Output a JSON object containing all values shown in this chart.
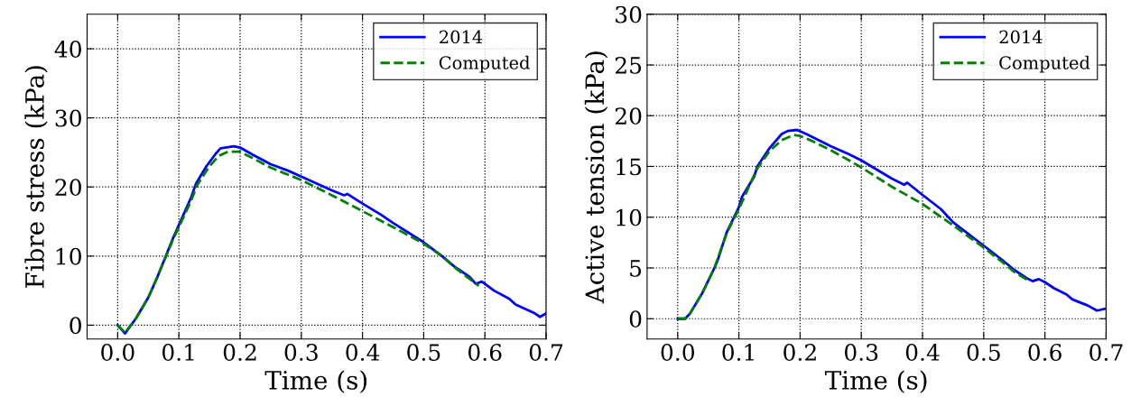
{
  "chart_data": [
    {
      "type": "line",
      "xlabel": "Time (s)",
      "ylabel": "Fibre stress (kPa)",
      "xlim": [
        -0.05,
        0.7
      ],
      "xticks": [
        {
          "value": 0,
          "label": "0.0"
        },
        0.1,
        0.2,
        0.3,
        0.4,
        0.5,
        0.6,
        0.7
      ],
      "ylim": [
        -2,
        45
      ],
      "yticks": [
        0,
        10,
        20,
        30,
        40
      ],
      "grid": true,
      "legend": "top right",
      "series": [
        {
          "name": "2014",
          "color": "#0000ff",
          "line_style": "solid",
          "x": [
            0,
            0.012,
            0.03,
            0.05,
            0.065,
            0.09,
            0.1,
            0.12,
            0.128,
            0.145,
            0.16,
            0.168,
            0.19,
            0.2,
            0.22,
            0.25,
            0.28,
            0.3,
            0.35,
            0.37,
            0.375,
            0.4,
            0.43,
            0.45,
            0.5,
            0.53,
            0.55,
            0.575,
            0.585,
            0.595,
            0.615,
            0.64,
            0.65,
            0.68,
            0.69,
            0.7
          ],
          "values": [
            0,
            -1.2,
            1,
            4,
            7,
            12.5,
            14.5,
            18.5,
            20.5,
            23,
            24.8,
            25.6,
            25.9,
            25.7,
            24.7,
            23.3,
            22.3,
            21.5,
            19.5,
            18.8,
            19,
            17.6,
            16,
            14.8,
            12,
            10,
            8.5,
            7,
            6,
            6.3,
            5,
            3.8,
            3,
            1.8,
            1.2,
            1.7
          ]
        },
        {
          "name": "Computed",
          "color": "#008000",
          "line_style": "dashed",
          "x": [
            0,
            0.012,
            0.03,
            0.05,
            0.065,
            0.09,
            0.1,
            0.12,
            0.13,
            0.15,
            0.165,
            0.18,
            0.2,
            0.22,
            0.25,
            0.3,
            0.35,
            0.4,
            0.45,
            0.5,
            0.53,
            0.55,
            0.575,
            0.59
          ],
          "values": [
            0,
            -1.1,
            1,
            4,
            7,
            12.3,
            14.2,
            18,
            20.3,
            23,
            24.5,
            25.1,
            25.1,
            24.2,
            22.8,
            21,
            18.8,
            16.5,
            14.2,
            11.8,
            10,
            8.4,
            6.7,
            5.7
          ]
        }
      ]
    },
    {
      "type": "line",
      "xlabel": "Time (s)",
      "ylabel": "Active tension (kPa)",
      "xlim": [
        -0.05,
        0.7
      ],
      "xticks": [
        {
          "value": 0,
          "label": "0.0"
        },
        0.1,
        0.2,
        0.3,
        0.4,
        0.5,
        0.6,
        0.7
      ],
      "ylim": [
        -2,
        30
      ],
      "yticks": [
        0,
        5,
        10,
        15,
        20,
        25,
        30
      ],
      "grid": true,
      "legend": "top right",
      "series": [
        {
          "name": "2014",
          "color": "#0000ff",
          "line_style": "solid",
          "x": [
            0,
            0.012,
            0.02,
            0.04,
            0.06,
            0.065,
            0.08,
            0.1,
            0.105,
            0.125,
            0.13,
            0.15,
            0.16,
            0.17,
            0.18,
            0.195,
            0.21,
            0.25,
            0.28,
            0.3,
            0.35,
            0.37,
            0.375,
            0.4,
            0.43,
            0.45,
            0.5,
            0.53,
            0.55,
            0.57,
            0.58,
            0.59,
            0.6,
            0.615,
            0.635,
            0.645,
            0.67,
            0.685,
            0.7
          ],
          "values": [
            0,
            0,
            0.5,
            2.5,
            5,
            5.7,
            8.5,
            11,
            12,
            14,
            15,
            16.8,
            17.5,
            18.2,
            18.5,
            18.6,
            18.2,
            17,
            16.2,
            15.6,
            13.8,
            13.2,
            13.4,
            12.2,
            10.8,
            9.5,
            7.2,
            5.8,
            4.8,
            4,
            3.7,
            3.9,
            3.6,
            3,
            2.4,
            1.9,
            1.3,
            0.8,
            1
          ]
        },
        {
          "name": "Computed",
          "color": "#008000",
          "line_style": "dashed",
          "x": [
            0,
            0.012,
            0.02,
            0.04,
            0.06,
            0.08,
            0.1,
            0.12,
            0.13,
            0.15,
            0.17,
            0.19,
            0.2,
            0.22,
            0.25,
            0.28,
            0.3,
            0.35,
            0.4,
            0.45,
            0.5,
            0.53,
            0.55,
            0.575
          ],
          "values": [
            0,
            0,
            0.5,
            2.5,
            5,
            8.4,
            10.8,
            13.5,
            14.8,
            16.5,
            17.6,
            18.1,
            18,
            17.5,
            16.6,
            15.6,
            14.9,
            13,
            11.3,
            9.2,
            7,
            5.6,
            4.6,
            3.7
          ]
        }
      ]
    }
  ]
}
